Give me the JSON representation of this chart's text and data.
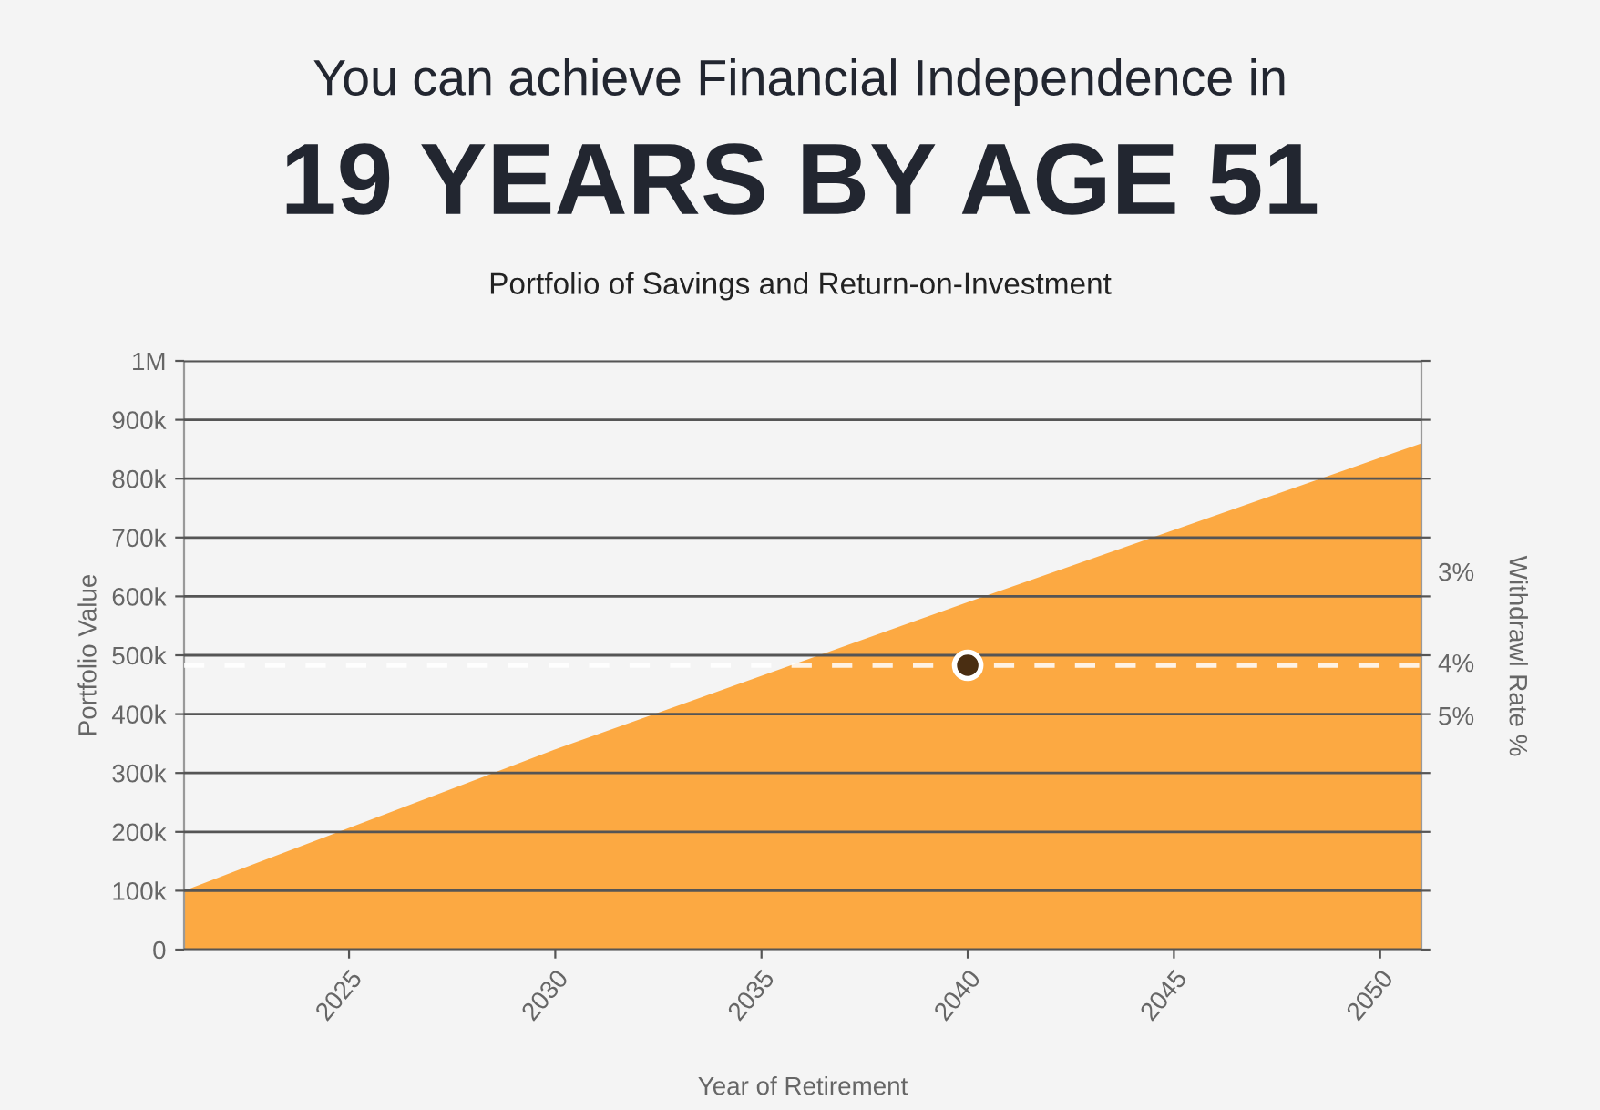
{
  "chart_data": {
    "type": "area",
    "title": "You can achieve Financial Independence in",
    "subtitle": "19 YEARS BY AGE 51",
    "annotations": [
      "Portfolio of Savings and Return-on-Investment",
      "3%",
      "4%",
      "5%"
    ],
    "xlabel": "Year of Retirement",
    "ylabel": "Portfolio Value",
    "y2label": "Withdrawl Rate %",
    "series": [
      {
        "color": "#fca942",
        "x": [
          2021,
          2030,
          2040,
          2051
        ],
        "values": [
          100000,
          340000,
          590000,
          860000
        ]
      },
      {
        "type": "scatter",
        "color": "#4a2e12",
        "x": [
          2040
        ],
        "values": [
          483000
        ]
      }
    ],
    "xlim": [
      2021,
      2051
    ],
    "xticks": [
      2025,
      2030,
      2035,
      2040,
      2045,
      2050
    ],
    "ylim": [
      0,
      1000000
    ],
    "yticks": [
      {
        "value": 0,
        "label": "0"
      },
      {
        "value": 100000,
        "label": "100k"
      },
      {
        "value": 200000,
        "label": "200k"
      },
      {
        "value": 300000,
        "label": "300k"
      },
      {
        "value": 400000,
        "label": "400k"
      },
      {
        "value": 500000,
        "label": "500k"
      },
      {
        "value": 600000,
        "label": "600k"
      },
      {
        "value": 700000,
        "label": "700k"
      },
      {
        "value": 800000,
        "label": "800k"
      },
      {
        "value": 900000,
        "label": "900k"
      },
      {
        "value": 1000000,
        "label": "1M"
      }
    ],
    "ref_lines": [
      {
        "axis": "y",
        "value": 483000,
        "color": "#ffffff",
        "line_style": "dashed"
      }
    ],
    "grid": "y",
    "legend": false
  }
}
